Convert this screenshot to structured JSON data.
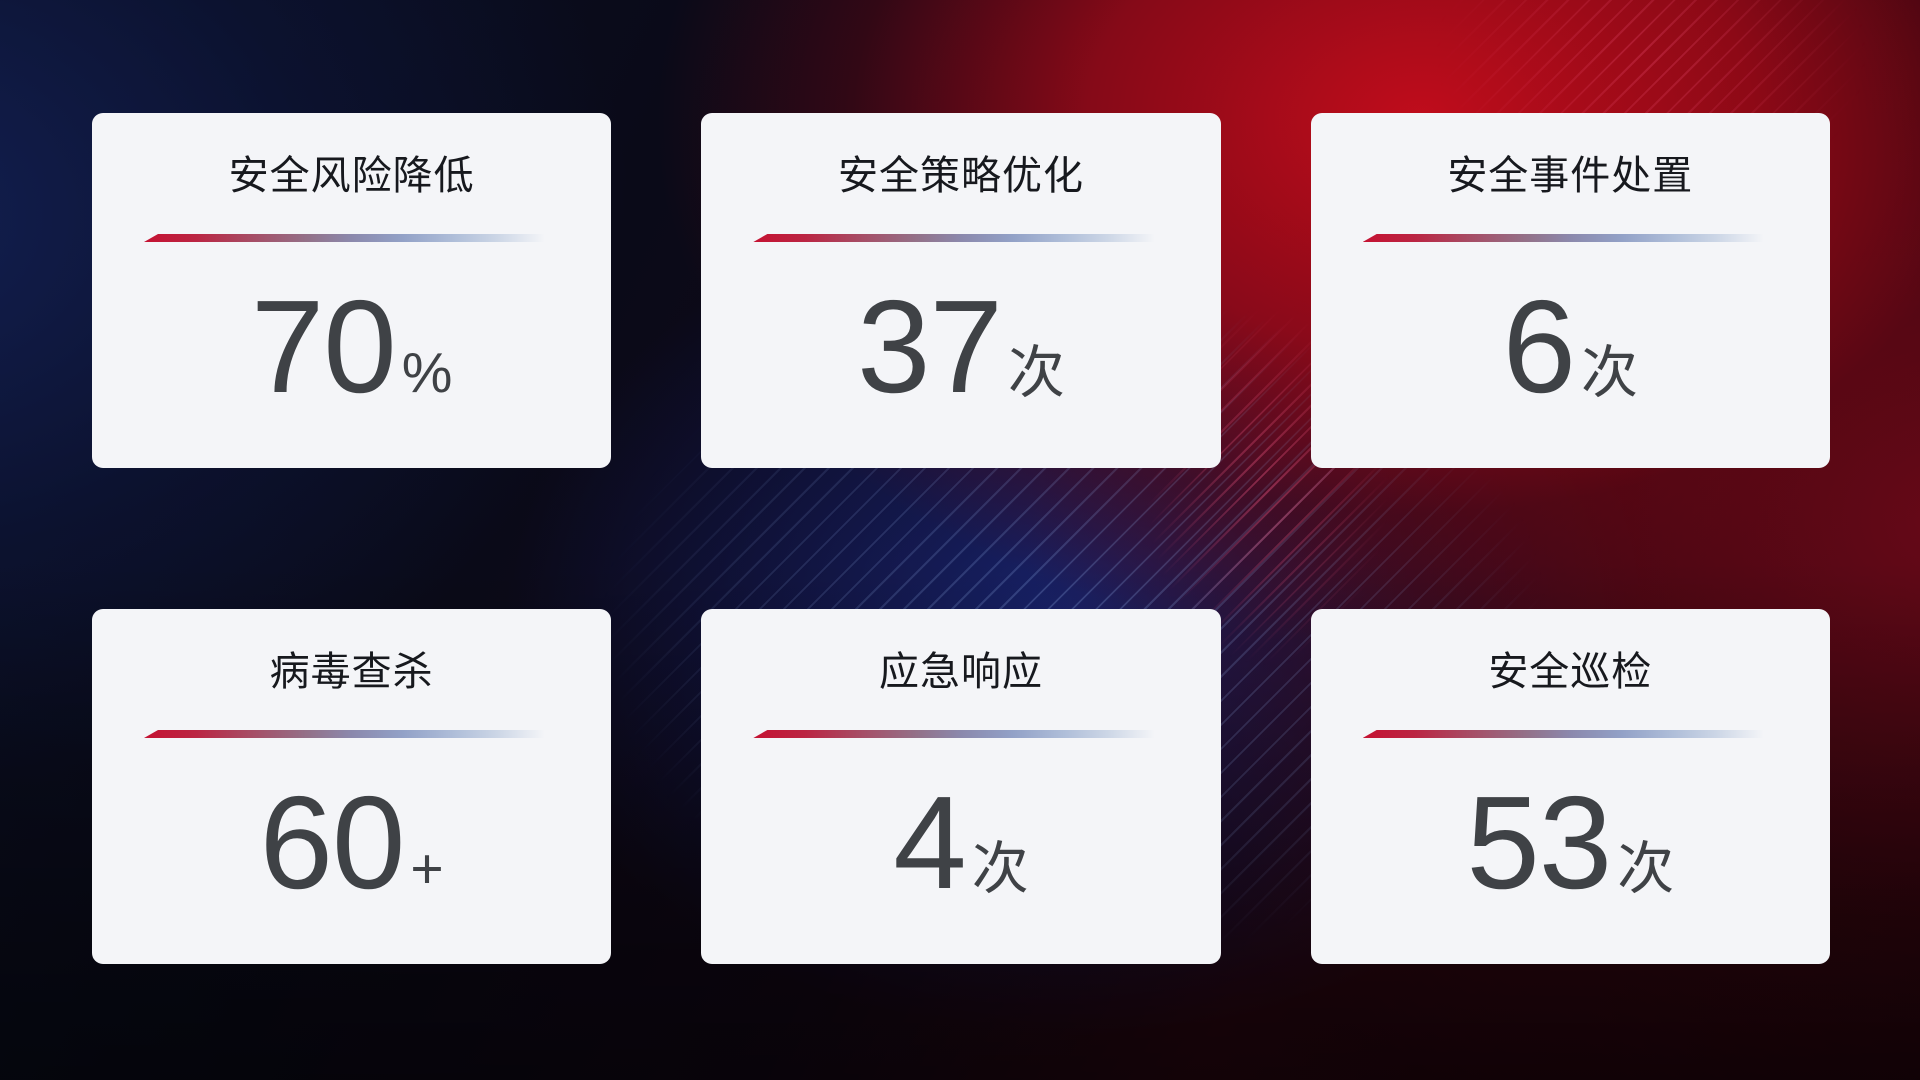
{
  "cards": [
    {
      "title": "安全风险降低",
      "value": "70",
      "suffix": "%"
    },
    {
      "title": "安全策略优化",
      "value": "37",
      "suffix": "次"
    },
    {
      "title": "安全事件处置",
      "value": "6",
      "suffix": "次"
    },
    {
      "title": "病毒查杀",
      "value": "60",
      "suffix": "+"
    },
    {
      "title": "应急响应",
      "value": "4",
      "suffix": "次"
    },
    {
      "title": "安全巡检",
      "value": "53",
      "suffix": "次"
    }
  ],
  "colors": {
    "card_background": "#f4f5f8",
    "title_text": "#17191e",
    "value_text": "#3f4246",
    "divider_red": "#c51232",
    "divider_blue": "#92a1c7",
    "background_red_glow": "#c60d1c",
    "background_navy_glow": "#132054",
    "background_blue_glow": "#182980"
  }
}
